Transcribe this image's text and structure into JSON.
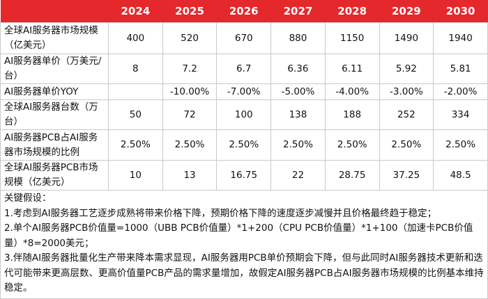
{
  "table": {
    "columns": [
      "2024",
      "2025",
      "2026",
      "2027",
      "2028",
      "2029",
      "2030"
    ],
    "rows": [
      {
        "label": "全球AI服务器市场规模（亿美元）",
        "cells": [
          "400",
          "520",
          "670",
          "880",
          "1150",
          "1490",
          "1940"
        ]
      },
      {
        "label": "AI服务器单价（万美元/台）",
        "cells": [
          "8",
          "7.2",
          "6.7",
          "6.36",
          "6.11",
          "5.92",
          "5.81"
        ]
      },
      {
        "label": "AI服务器单价YOY",
        "cells": [
          null,
          "-10.00%",
          "-7.00%",
          "-5.00%",
          "-4.00%",
          "-3.00%",
          "-2.00%"
        ]
      },
      {
        "label": "全球AI服务器台数（万台）",
        "cells": [
          "50",
          "72",
          "100",
          "138",
          "188",
          "252",
          "334"
        ]
      },
      {
        "label": "AI服务器PCB占AI服务器市场规模的比例",
        "cells": [
          "2.50%",
          "2.50%",
          "2.50%",
          "2.50%",
          "2.50%",
          "2.50%",
          "2.50%"
        ]
      },
      {
        "label": "全球AI服务器PCB市场规模（亿美元）",
        "cells": [
          "10",
          "13",
          "16.75",
          "22",
          "28.75",
          "37.25",
          "48.5"
        ]
      }
    ]
  },
  "notes": {
    "title": "关键假设：",
    "items": [
      "1.考虑到AI服务器工艺逐步成熟将带来价格下降，预期价格下降的速度逐步减慢并且价格最终趋于稳定；",
      "2.单个AI服务器PCB价值量=1000（UBB PCB价值量）*1+200（CPU PCB价值量）*1+100（加速卡PCB价值量）*8=2000美元；",
      "3.伴随AI服务器批量化生产带来降本需求显现，AI服务器用PCB单价预期会下降，但与此同时AI服务器技术更新和迭代可能带来更高层数、更高价值量PCB产品的需求量增加，故假定AI服务器PCB占AI服务器市场规模的比例基本维持稳定。"
    ]
  }
}
